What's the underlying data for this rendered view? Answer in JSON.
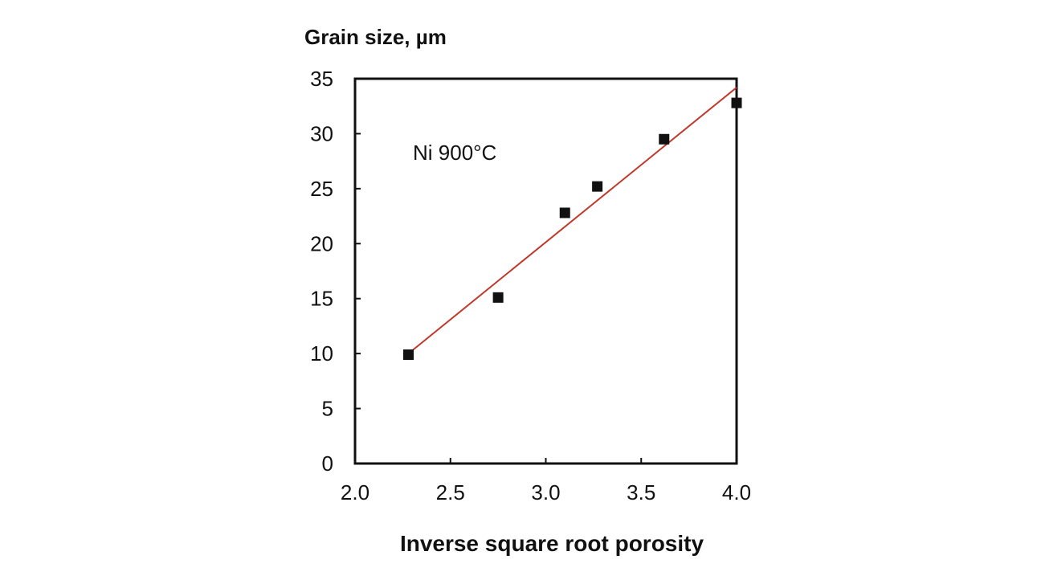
{
  "chart_data": {
    "type": "scatter",
    "title": "",
    "xlabel": "Inverse square root porosity",
    "ylabel": "Grain size, µm",
    "xlim": [
      2.0,
      4.0
    ],
    "ylim": [
      0,
      35
    ],
    "xticks": [
      2.0,
      2.5,
      3.0,
      3.5,
      4.0
    ],
    "xtick_labels": [
      "2.0",
      "2.5",
      "3.0",
      "3.5",
      "4.0"
    ],
    "yticks": [
      0,
      5,
      10,
      15,
      20,
      25,
      30,
      35
    ],
    "ytick_labels": [
      "0",
      "5",
      "10",
      "15",
      "20",
      "25",
      "30",
      "35"
    ],
    "grid": false,
    "annotation": "Ni 900°C",
    "series": [
      {
        "marker": "square",
        "color": "#111111",
        "x": [
          2.28,
          2.75,
          3.1,
          3.27,
          3.62,
          4.0
        ],
        "y": [
          9.9,
          15.1,
          22.8,
          25.2,
          29.5,
          32.8
        ]
      }
    ],
    "trendline": {
      "type": "linear",
      "color": "#c0392b",
      "x": [
        2.28,
        4.0
      ],
      "y": [
        10.0,
        34.2
      ]
    }
  }
}
